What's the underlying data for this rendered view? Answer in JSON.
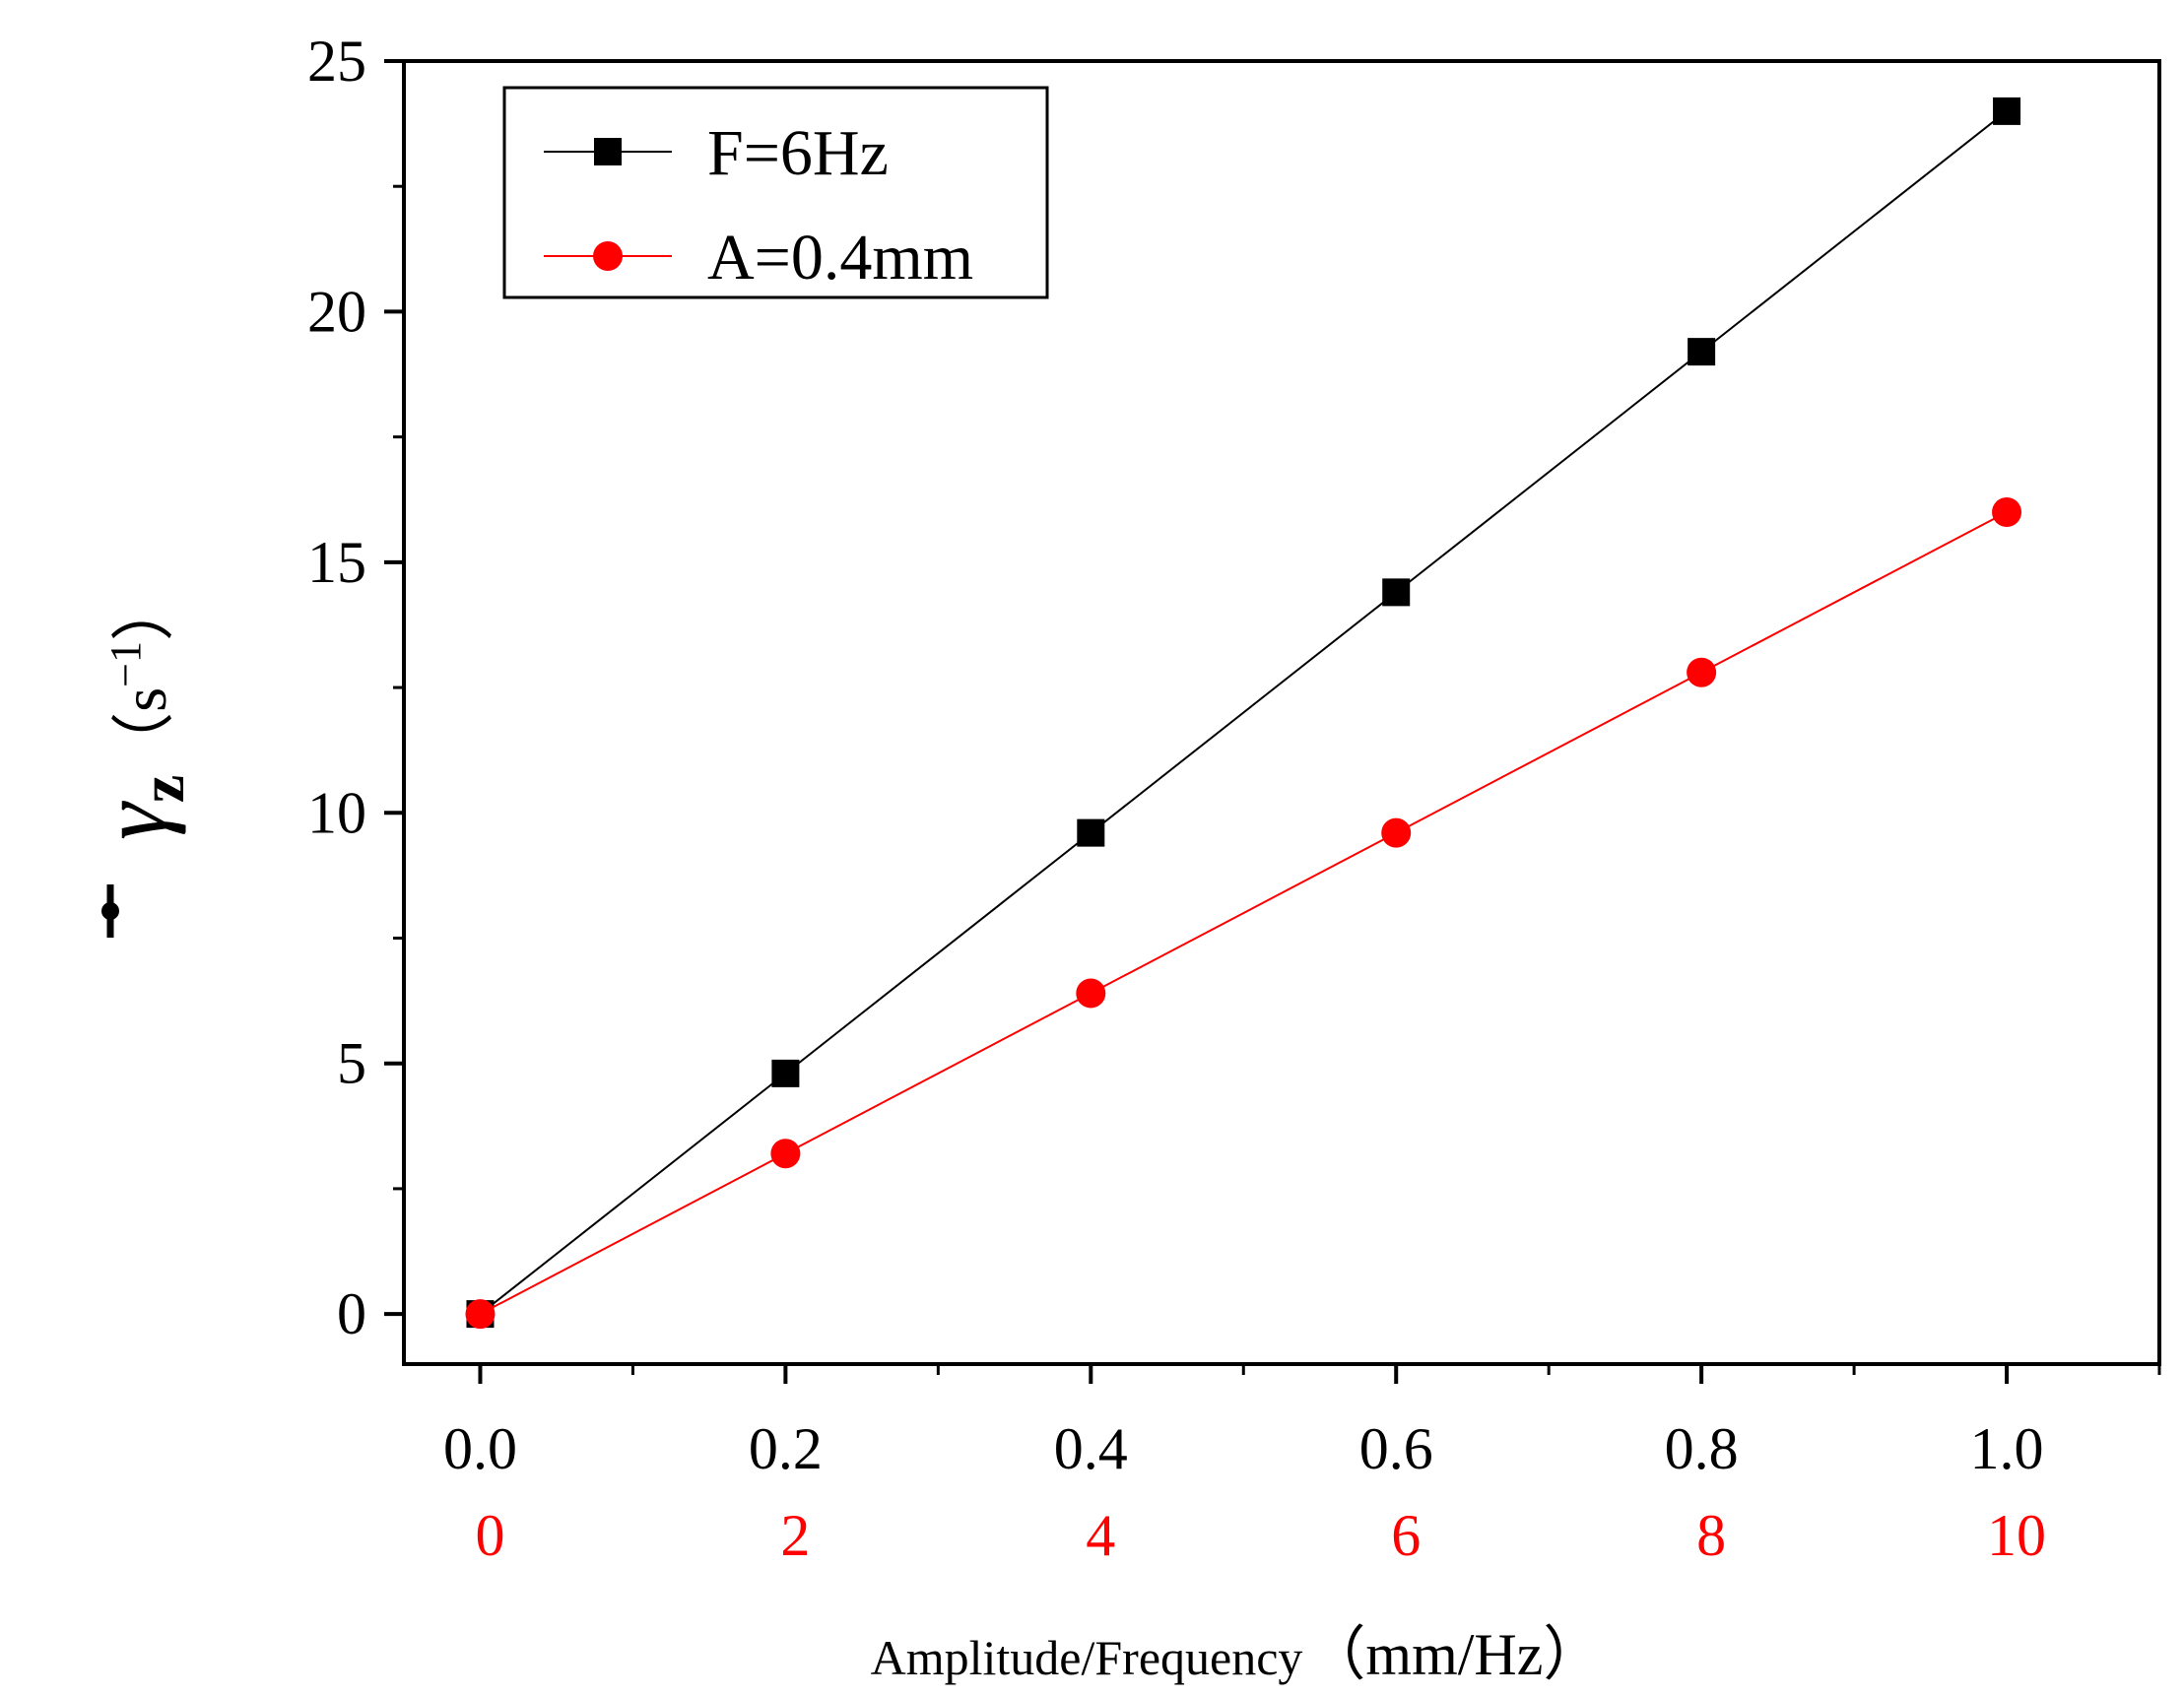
{
  "chart_data": {
    "type": "line",
    "title": "",
    "xlabel": {
      "prefix": "Amplitude/Frequency",
      "unit": "（mm/Hz）"
    },
    "ylabel": {
      "symbol": "γ",
      "subscript": "z",
      "unit_open": "（s",
      "unit_exp": "−1",
      "unit_close": "）"
    },
    "xlim": [
      -0.05,
      1.1
    ],
    "ylim": [
      -1,
      25
    ],
    "x_ticks": [
      0.0,
      0.2,
      0.4,
      0.6,
      0.8,
      1.0
    ],
    "x_tick_labels": [
      "0.0",
      "0.2",
      "0.4",
      "0.6",
      "0.8",
      "1.0"
    ],
    "x_minor_ticks": [
      0.1,
      0.3,
      0.5,
      0.7,
      0.9,
      1.1
    ],
    "secondary_x_tick_labels": [
      "0",
      "2",
      "4",
      "6",
      "8",
      "10"
    ],
    "secondary_x_color": "#ff0000",
    "y_ticks": [
      0,
      5,
      10,
      15,
      20,
      25
    ],
    "y_tick_labels": [
      "0",
      "5",
      "10",
      "15",
      "20",
      "25"
    ],
    "y_minor_ticks": [
      2.5,
      7.5,
      12.5,
      17.5,
      22.5
    ],
    "grid": false,
    "legend_position": "top-left",
    "x": [
      0.0,
      0.2,
      0.4,
      0.6,
      0.8,
      1.0
    ],
    "series": [
      {
        "name": "F=6Hz",
        "values": [
          0,
          4.8,
          9.6,
          14.4,
          19.2,
          24.0
        ],
        "color": "#000000",
        "marker": "square"
      },
      {
        "name": "A=0.4mm",
        "values": [
          0,
          3.2,
          6.4,
          9.6,
          12.8,
          16.0
        ],
        "color": "#ff0000",
        "marker": "circle"
      }
    ]
  }
}
